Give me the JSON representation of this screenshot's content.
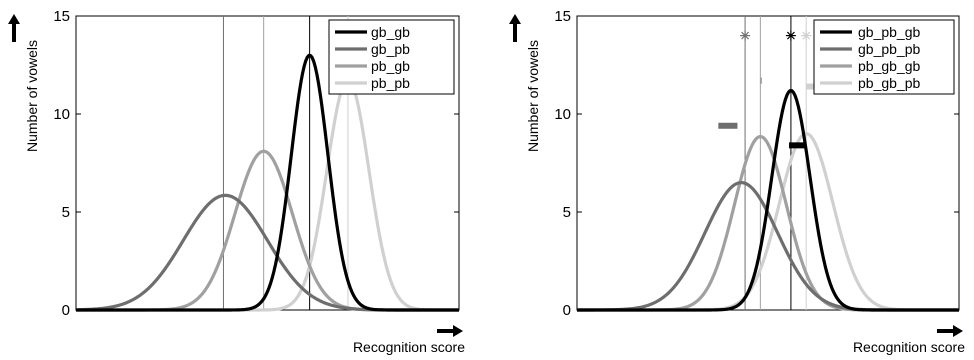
{
  "chart_data": [
    {
      "type": "line",
      "xlabel": "Recognition score",
      "ylabel": "Number of vowels",
      "ylim": [
        0,
        15
      ],
      "yticks": [
        "0",
        "5",
        "10",
        "15"
      ],
      "xlim": [
        0,
        1
      ],
      "grid": false,
      "legend": "top-right",
      "series": [
        {
          "name": "gb_gb",
          "color": "#000000",
          "mean": 0.61,
          "sd": 0.048,
          "peak": 13.0
        },
        {
          "name": "gb_pb",
          "color": "#6e6e6e",
          "mean": 0.39,
          "sd": 0.11,
          "peak": 5.85
        },
        {
          "name": "pb_gb",
          "color": "#a0a0a0",
          "mean": 0.49,
          "sd": 0.075,
          "peak": 8.1
        },
        {
          "name": "pb_pb",
          "color": "#d0d0d0",
          "mean": 0.71,
          "sd": 0.055,
          "peak": 11.75
        }
      ],
      "vlines": [
        {
          "x": 0.385,
          "color": "#707070"
        },
        {
          "x": 0.49,
          "color": "#a0a0a0"
        },
        {
          "x": 0.61,
          "color": "#000000"
        },
        {
          "x": 0.71,
          "color": "#d0d0d0"
        }
      ]
    },
    {
      "type": "line",
      "xlabel": "Recognition score",
      "ylabel": "Number of vowels",
      "ylim": [
        0,
        15
      ],
      "yticks": [
        "0",
        "5",
        "10",
        "15"
      ],
      "xlim": [
        0,
        1
      ],
      "grid": false,
      "legend": "top-right",
      "series": [
        {
          "name": "gb_pb_gb",
          "color": "#000000",
          "mean": 0.56,
          "sd": 0.05,
          "peak": 11.2
        },
        {
          "name": "gb_pb_pb",
          "color": "#6e6e6e",
          "mean": 0.43,
          "sd": 0.095,
          "peak": 6.5
        },
        {
          "name": "pb_gb_gb",
          "color": "#a0a0a0",
          "mean": 0.48,
          "sd": 0.068,
          "peak": 8.85
        },
        {
          "name": "pb_gb_pb",
          "color": "#d0d0d0",
          "mean": 0.6,
          "sd": 0.07,
          "peak": 9.0
        }
      ],
      "vlines": [
        {
          "x": 0.44,
          "color": "#707070"
        },
        {
          "x": 0.48,
          "color": "#a0a0a0"
        },
        {
          "x": 0.56,
          "color": "#000000"
        },
        {
          "x": 0.6,
          "color": "#d0d0d0"
        }
      ],
      "stars": [
        {
          "x": 0.44,
          "y": 14,
          "color": "#707070"
        },
        {
          "x": 0.56,
          "y": 14,
          "color": "#000000"
        },
        {
          "x": 0.6,
          "y": 14,
          "color": "#d0d0d0"
        }
      ],
      "bars": [
        {
          "x0": 0.37,
          "x1": 0.42,
          "y": 9.4,
          "color": "#6e6e6e"
        },
        {
          "x0": 0.479,
          "x1": 0.481,
          "y": 11.7,
          "color": "#a0a0a0"
        },
        {
          "x0": 0.555,
          "x1": 0.6,
          "y": 8.4,
          "color": "#000000"
        },
        {
          "x0": 0.6,
          "x1": 0.7,
          "y": 11.4,
          "color": "#d0d0d0"
        }
      ]
    }
  ]
}
